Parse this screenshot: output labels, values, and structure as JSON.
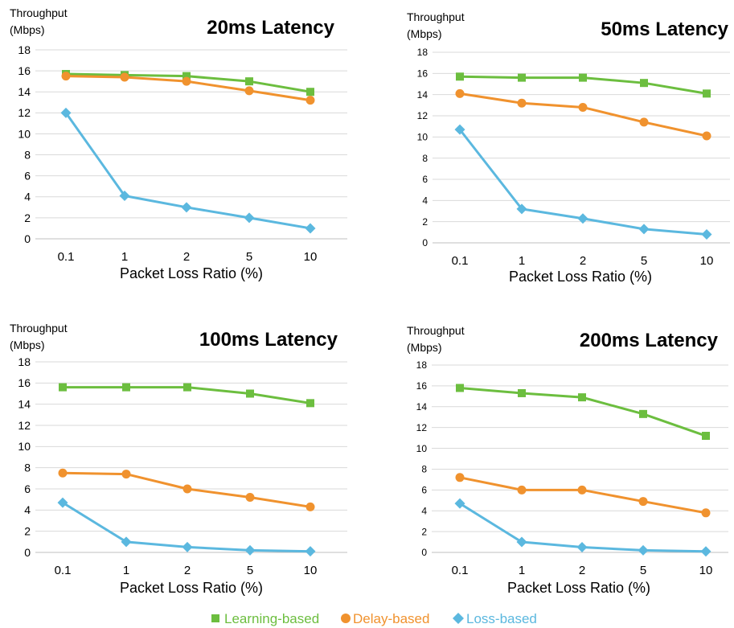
{
  "colors": {
    "learning": "#6cbe3f",
    "delay": "#f0922e",
    "loss": "#5bb8df",
    "grid": "#d9d9d9",
    "axis": "#bfbfbf"
  },
  "legend": [
    {
      "label": "Learning-based",
      "color": "#6cbe3f",
      "marker": "square"
    },
    {
      "label": "Delay-based",
      "color": "#f0922e",
      "marker": "circle"
    },
    {
      "label": "Loss-based",
      "color": "#5bb8df",
      "marker": "diamond"
    }
  ],
  "chart_data": [
    {
      "type": "line",
      "title": "20ms Latency",
      "ylabel_line1": "Throughput",
      "ylabel_line2": "(Mbps)",
      "xlabel": "Packet Loss Ratio (%)",
      "categories": [
        "0.1",
        "1",
        "2",
        "5",
        "10"
      ],
      "ylim": [
        0,
        18
      ],
      "yticks": [
        "0",
        "2",
        "4",
        "6",
        "8",
        "10",
        "12",
        "14",
        "16",
        "18"
      ],
      "grid": true,
      "series": [
        {
          "name": "Learning-based",
          "key": "learning",
          "marker": "square",
          "values": [
            15.7,
            15.6,
            15.5,
            15.0,
            14.0
          ]
        },
        {
          "name": "Delay-based",
          "key": "delay",
          "marker": "circle",
          "values": [
            15.5,
            15.4,
            15.0,
            14.1,
            13.2
          ]
        },
        {
          "name": "Loss-based",
          "key": "loss",
          "marker": "diamond",
          "values": [
            12.0,
            4.1,
            3.0,
            2.0,
            1.0
          ]
        }
      ]
    },
    {
      "type": "line",
      "title": "50ms Latency",
      "ylabel_line1": "Throughput",
      "ylabel_line2": "(Mbps)",
      "xlabel": "Packet Loss Ratio (%)",
      "categories": [
        "0.1",
        "1",
        "2",
        "5",
        "10"
      ],
      "ylim": [
        0,
        18
      ],
      "yticks": [
        "0",
        "2",
        "4",
        "6",
        "8",
        "10",
        "12",
        "14",
        "16",
        "18"
      ],
      "grid": true,
      "series": [
        {
          "name": "Learning-based",
          "key": "learning",
          "marker": "square",
          "values": [
            15.7,
            15.6,
            15.6,
            15.1,
            14.1
          ]
        },
        {
          "name": "Delay-based",
          "key": "delay",
          "marker": "circle",
          "values": [
            14.1,
            13.2,
            12.8,
            11.4,
            10.1
          ]
        },
        {
          "name": "Loss-based",
          "key": "loss",
          "marker": "diamond",
          "values": [
            10.7,
            3.2,
            2.3,
            1.3,
            0.8
          ]
        }
      ]
    },
    {
      "type": "line",
      "title": "100ms Latency",
      "ylabel_line1": "Throughput",
      "ylabel_line2": "(Mbps)",
      "xlabel": "Packet Loss Ratio (%)",
      "categories": [
        "0.1",
        "1",
        "2",
        "5",
        "10"
      ],
      "ylim": [
        0,
        18
      ],
      "yticks": [
        "0",
        "2",
        "4",
        "6",
        "8",
        "10",
        "12",
        "14",
        "16",
        "18"
      ],
      "grid": true,
      "series": [
        {
          "name": "Learning-based",
          "key": "learning",
          "marker": "square",
          "values": [
            15.6,
            15.6,
            15.6,
            15.0,
            14.1
          ]
        },
        {
          "name": "Delay-based",
          "key": "delay",
          "marker": "circle",
          "values": [
            7.5,
            7.4,
            6.0,
            5.2,
            4.3
          ]
        },
        {
          "name": "Loss-based",
          "key": "loss",
          "marker": "diamond",
          "values": [
            4.7,
            1.0,
            0.5,
            0.2,
            0.1
          ]
        }
      ]
    },
    {
      "type": "line",
      "title": "200ms Latency",
      "ylabel_line1": "Throughput",
      "ylabel_line2": "(Mbps)",
      "xlabel": "Packet Loss Ratio (%)",
      "categories": [
        "0.1",
        "1",
        "2",
        "5",
        "10"
      ],
      "ylim": [
        0,
        18
      ],
      "yticks": [
        "0",
        "2",
        "4",
        "6",
        "8",
        "10",
        "12",
        "14",
        "16",
        "18"
      ],
      "grid": true,
      "series": [
        {
          "name": "Learning-based",
          "key": "learning",
          "marker": "square",
          "values": [
            15.8,
            15.3,
            14.9,
            13.3,
            11.2
          ]
        },
        {
          "name": "Delay-based",
          "key": "delay",
          "marker": "circle",
          "values": [
            7.2,
            6.0,
            6.0,
            4.9,
            3.8
          ]
        },
        {
          "name": "Loss-based",
          "key": "loss",
          "marker": "diamond",
          "values": [
            4.7,
            1.0,
            0.5,
            0.2,
            0.1
          ]
        }
      ]
    }
  ]
}
